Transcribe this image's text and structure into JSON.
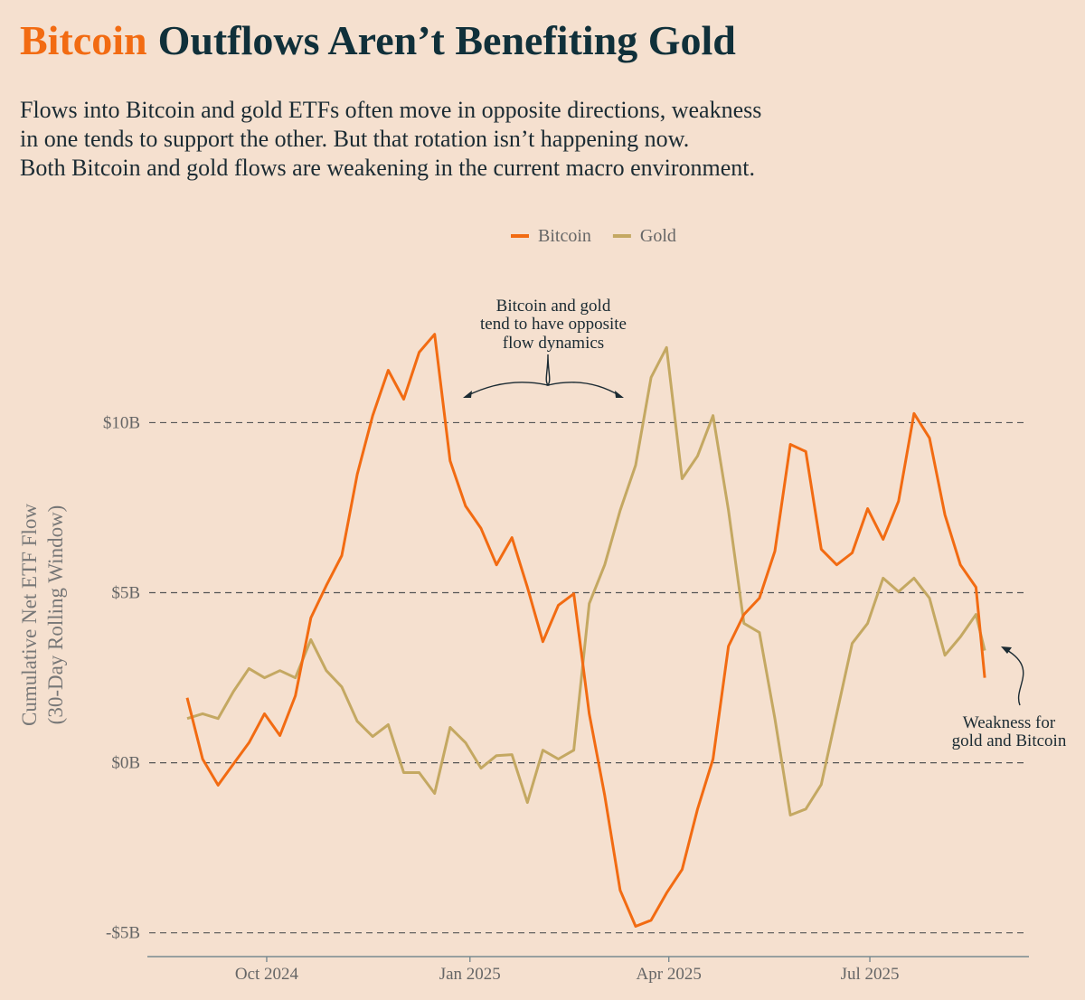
{
  "chart_data": {
    "type": "line",
    "title": {
      "highlight": "Bitcoin",
      "rest": "Outflows Aren’t Benefiting Gold"
    },
    "subtitle": [
      "Flows into Bitcoin and gold ETFs often move in opposite directions, weakness",
      "in one tends to support the other. But that rotation isn’t happening now.",
      "Both Bitcoin and gold flows are weakening in the current macro environment."
    ],
    "ylabel": [
      "Cumulative Net ETF Flow",
      "(30-Day Rolling Window)"
    ],
    "annotations": [
      {
        "lines": [
          "Bitcoin and gold",
          "tend to have opposite",
          "flow dynamics"
        ]
      },
      {
        "lines": [
          "Weakness for",
          "gold and Bitcoin"
        ]
      }
    ],
    "legend": "top",
    "grid": true,
    "xlim": [
      "2024-08-08",
      "2025-09-11"
    ],
    "xticks": [
      {
        "value": "2024-10-01",
        "label": "Oct 2024"
      },
      {
        "value": "2025-01-01",
        "label": "Jan 2025"
      },
      {
        "value": "2025-04-01",
        "label": "Apr 2025"
      },
      {
        "value": "2025-07-01",
        "label": "Jul 2025"
      }
    ],
    "ylim": [
      -5.7,
      14
    ],
    "yticks": [
      {
        "value": -5,
        "label": "-$5B"
      },
      {
        "value": 0,
        "label": "$0B"
      },
      {
        "value": 5,
        "label": "$5B"
      },
      {
        "value": 10,
        "label": "$10B"
      }
    ],
    "x": [
      "2024-08-26",
      "2024-09-02",
      "2024-09-09",
      "2024-09-16",
      "2024-09-23",
      "2024-09-30",
      "2024-10-07",
      "2024-10-14",
      "2024-10-21",
      "2024-10-28",
      "2024-11-04",
      "2024-11-11",
      "2024-11-18",
      "2024-11-25",
      "2024-12-02",
      "2024-12-09",
      "2024-12-16",
      "2024-12-23",
      "2024-12-30",
      "2025-01-06",
      "2025-01-13",
      "2025-01-20",
      "2025-01-27",
      "2025-02-03",
      "2025-02-10",
      "2025-02-17",
      "2025-02-24",
      "2025-03-03",
      "2025-03-10",
      "2025-03-17",
      "2025-03-24",
      "2025-03-31",
      "2025-04-07",
      "2025-04-14",
      "2025-04-21",
      "2025-04-28",
      "2025-05-05",
      "2025-05-12",
      "2025-05-19",
      "2025-05-26",
      "2025-06-02",
      "2025-06-09",
      "2025-06-16",
      "2025-06-23",
      "2025-06-30",
      "2025-07-07",
      "2025-07-14",
      "2025-07-21",
      "2025-07-28",
      "2025-08-04",
      "2025-08-11",
      "2025-08-18",
      "2025-08-22"
    ],
    "series": [
      {
        "name": "Bitcoin",
        "color": "#f26b12",
        "values": [
          1.91,
          0.11,
          -0.66,
          -0.03,
          0.59,
          1.44,
          0.8,
          1.97,
          4.26,
          5.21,
          6.09,
          8.48,
          10.21,
          11.54,
          10.69,
          12.07,
          12.6,
          8.88,
          7.55,
          6.89,
          5.82,
          6.62,
          5.16,
          3.56,
          4.63,
          4.97,
          1.44,
          -0.96,
          -3.75,
          -4.81,
          -4.63,
          -3.83,
          -3.14,
          -1.36,
          0.11,
          3.43,
          4.36,
          4.84,
          6.22,
          9.36,
          9.15,
          6.28,
          5.82,
          6.17,
          7.47,
          6.57,
          7.69,
          10.27,
          9.55,
          7.29,
          5.82,
          5.16,
          2.5
        ]
      },
      {
        "name": "Gold",
        "color": "#c4a862",
        "values": [
          1.3,
          1.44,
          1.3,
          2.1,
          2.77,
          2.5,
          2.71,
          2.5,
          3.62,
          2.71,
          2.23,
          1.22,
          0.77,
          1.12,
          -0.29,
          -0.29,
          -0.9,
          1.04,
          0.59,
          -0.16,
          0.21,
          0.24,
          -1.17,
          0.37,
          0.11,
          0.37,
          4.68,
          5.82,
          7.42,
          8.75,
          11.33,
          12.21,
          8.35,
          9.02,
          10.21,
          7.42,
          4.1,
          3.83,
          1.3,
          -1.54,
          -1.36,
          -0.64,
          1.44,
          3.51,
          4.1,
          5.43,
          5.03,
          5.43,
          4.84,
          3.16,
          3.7,
          4.36,
          3.3
        ]
      }
    ]
  }
}
